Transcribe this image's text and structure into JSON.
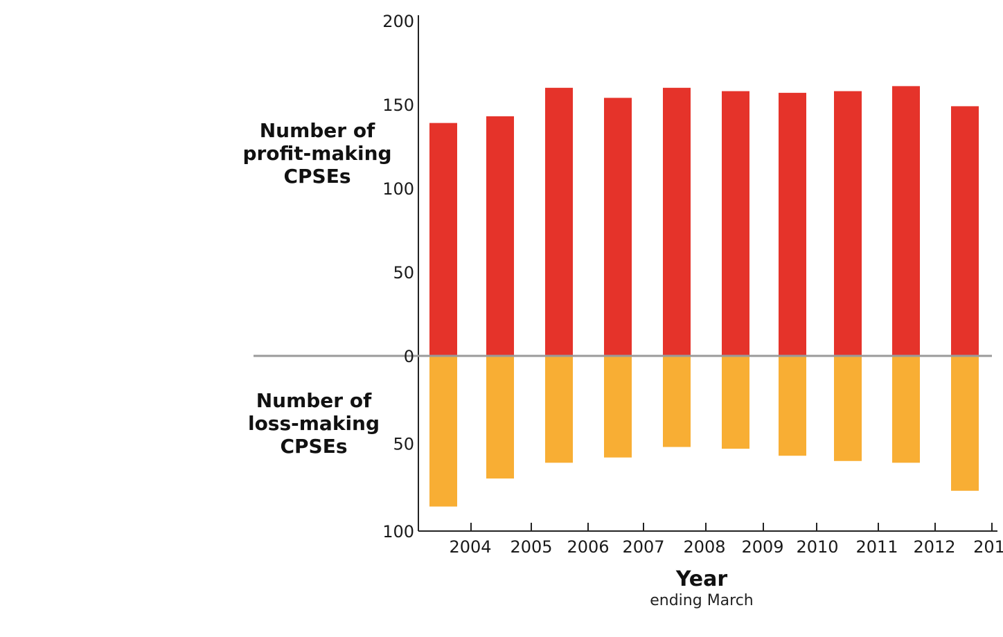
{
  "chart_data": {
    "type": "bar",
    "categories": [
      "2004",
      "2005",
      "2006",
      "2007",
      "2008",
      "2009",
      "2010",
      "2011",
      "2012",
      "201"
    ],
    "series": [
      {
        "name": "Number of profit-making CPSEs",
        "values": [
          139,
          143,
          160,
          154,
          160,
          158,
          157,
          158,
          161,
          149
        ],
        "color": "#e5332a"
      },
      {
        "name": "Number of loss-making CPSEs",
        "values": [
          86,
          70,
          61,
          58,
          52,
          53,
          57,
          60,
          61,
          77
        ],
        "color": "#f8ae34"
      }
    ],
    "upper_axis": {
      "label_lines": [
        "Number of",
        "profit-making",
        "CPSEs"
      ],
      "ylim": [
        0,
        200
      ],
      "ticks": [
        "200",
        "150",
        "100",
        "50",
        "0"
      ],
      "tick_values": [
        200,
        150,
        100,
        50,
        0
      ]
    },
    "lower_axis": {
      "label_lines": [
        "Number of",
        "loss-making",
        "CPSEs"
      ],
      "ylim": [
        0,
        100
      ],
      "ticks": [
        "50",
        "100"
      ],
      "tick_values": [
        50,
        100
      ]
    },
    "xlabel": "Year",
    "xlabel_sub": "ending March",
    "baseline_color": "#9a9a9a",
    "axis_color": "#222222",
    "grid": false,
    "legend": "none"
  }
}
